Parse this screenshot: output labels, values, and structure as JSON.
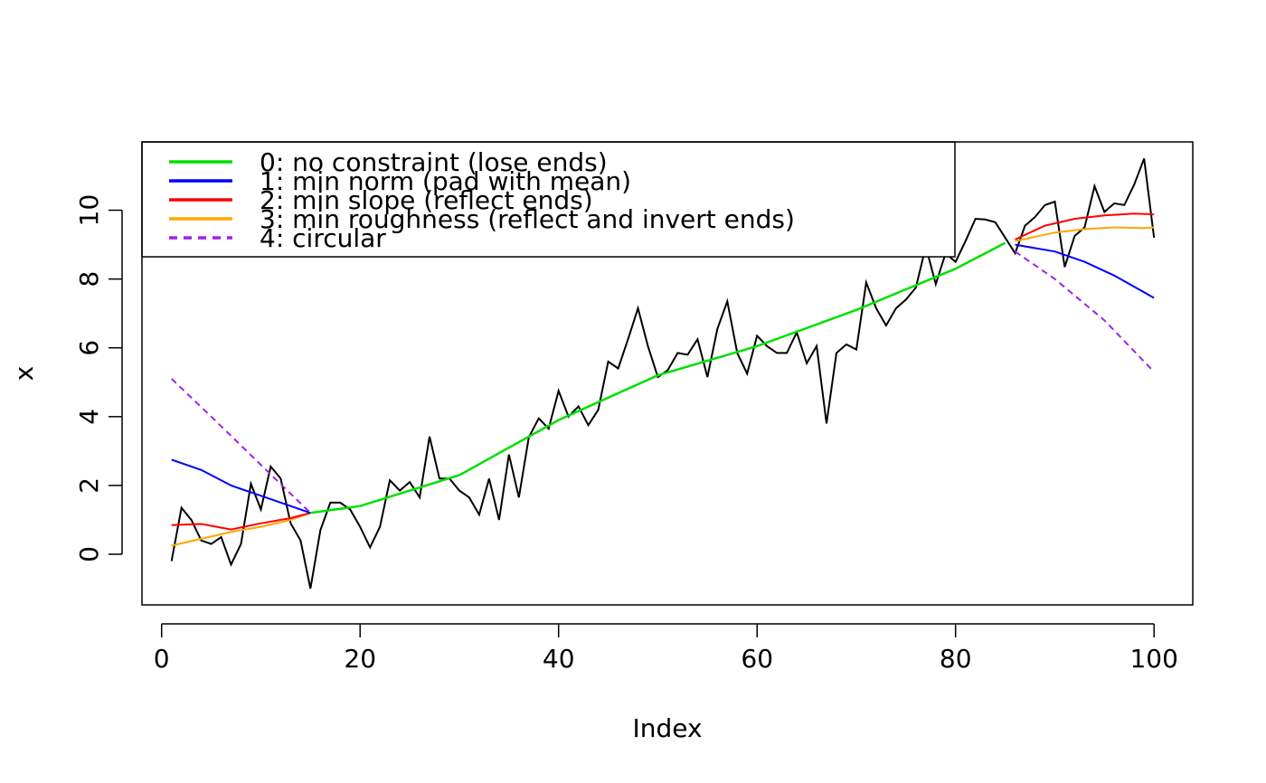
{
  "chart_data": {
    "type": "line",
    "title": "",
    "xlabel": "Index",
    "ylabel": "x",
    "xlim": [
      1,
      100
    ],
    "ylim": [
      -1.05,
      11.5
    ],
    "x_ticks": [
      0,
      20,
      40,
      60,
      80,
      100
    ],
    "y_ticks": [
      0,
      2,
      4,
      6,
      8,
      10
    ],
    "grid": false,
    "legend": {
      "position": "top-left",
      "items": [
        {
          "label": "0: no constraint (lose ends)",
          "color": "#00e000",
          "dash": "solid"
        },
        {
          "label": "1: min norm (pad with mean)",
          "color": "#0000ff",
          "dash": "solid"
        },
        {
          "label": "2: min slope (reflect ends)",
          "color": "#ff0000",
          "dash": "solid"
        },
        {
          "label": "3: min roughness (reflect and invert ends)",
          "color": "#ffa500",
          "dash": "solid"
        },
        {
          "label": "4: circular",
          "color": "#a020f0",
          "dash": "dashed"
        }
      ]
    },
    "raw_series": {
      "color": "#000000",
      "x_start": 1,
      "values": [
        -0.2,
        1.35,
        1.0,
        0.4,
        0.3,
        0.5,
        -0.3,
        0.3,
        2.05,
        1.3,
        2.55,
        2.2,
        0.9,
        0.4,
        -1.0,
        0.7,
        1.5,
        1.5,
        1.3,
        0.8,
        0.2,
        0.8,
        2.15,
        1.85,
        2.1,
        1.65,
        3.42,
        2.2,
        2.2,
        1.85,
        1.65,
        1.15,
        2.2,
        1.0,
        2.9,
        1.65,
        3.4,
        3.95,
        3.65,
        4.75,
        4.0,
        4.3,
        3.75,
        4.2,
        5.6,
        5.4,
        6.25,
        7.15,
        6.05,
        5.15,
        5.35,
        5.85,
        5.8,
        6.25,
        5.15,
        6.55,
        7.35,
        5.85,
        5.25,
        6.35,
        6.05,
        5.85,
        5.85,
        6.45,
        5.55,
        6.05,
        3.8,
        5.85,
        6.1,
        5.95,
        7.9,
        7.15,
        6.65,
        7.15,
        7.4,
        7.75,
        8.95,
        7.85,
        8.75,
        8.5,
        9.1,
        9.75,
        9.73,
        9.65,
        9.2,
        8.75,
        9.55,
        9.8,
        10.15,
        10.25,
        8.35,
        9.25,
        9.5,
        10.7,
        9.95,
        10.2,
        10.15,
        10.75,
        11.5,
        9.2
      ]
    },
    "series": [
      {
        "name": "0: no constraint (lose ends)",
        "color": "#00e000",
        "dash": "solid",
        "width": 2.5,
        "x": [
          15,
          20,
          30,
          40,
          50,
          60,
          70,
          80,
          85
        ],
        "values": [
          1.2,
          1.4,
          2.3,
          3.9,
          5.2,
          6.05,
          7.1,
          8.3,
          9.05
        ]
      },
      {
        "name": "1: min norm (pad with mean)",
        "color": "#0000ff",
        "dash": "solid",
        "width": 2,
        "x": [
          1,
          4,
          7,
          10,
          13,
          15,
          86,
          90,
          93,
          96,
          100
        ],
        "values": [
          2.75,
          2.45,
          2.0,
          1.7,
          1.4,
          1.2,
          9.0,
          8.8,
          8.5,
          8.1,
          7.45
        ]
      },
      {
        "name": "2: min slope (reflect ends)",
        "color": "#ff0000",
        "dash": "solid",
        "width": 2,
        "x": [
          1,
          4,
          7,
          10,
          13,
          15,
          86,
          89,
          92,
          95,
          98,
          100
        ],
        "values": [
          0.85,
          0.88,
          0.72,
          0.9,
          1.05,
          1.2,
          9.15,
          9.55,
          9.75,
          9.85,
          9.9,
          9.88
        ]
      },
      {
        "name": "3: min roughness (reflect and invert ends)",
        "color": "#ffa500",
        "dash": "solid",
        "width": 2,
        "x": [
          1,
          4,
          7,
          10,
          13,
          15,
          86,
          90,
          93,
          96,
          99,
          100
        ],
        "values": [
          0.25,
          0.45,
          0.65,
          0.8,
          1.0,
          1.2,
          9.1,
          9.35,
          9.45,
          9.5,
          9.48,
          9.5
        ]
      },
      {
        "name": "4: circular",
        "color": "#a020f0",
        "dash": "dashed",
        "width": 2,
        "x": [
          1,
          5,
          10,
          15,
          86,
          90,
          95,
          100
        ],
        "values": [
          5.1,
          4.0,
          2.6,
          1.2,
          8.8,
          8.0,
          6.8,
          5.3
        ]
      }
    ]
  }
}
